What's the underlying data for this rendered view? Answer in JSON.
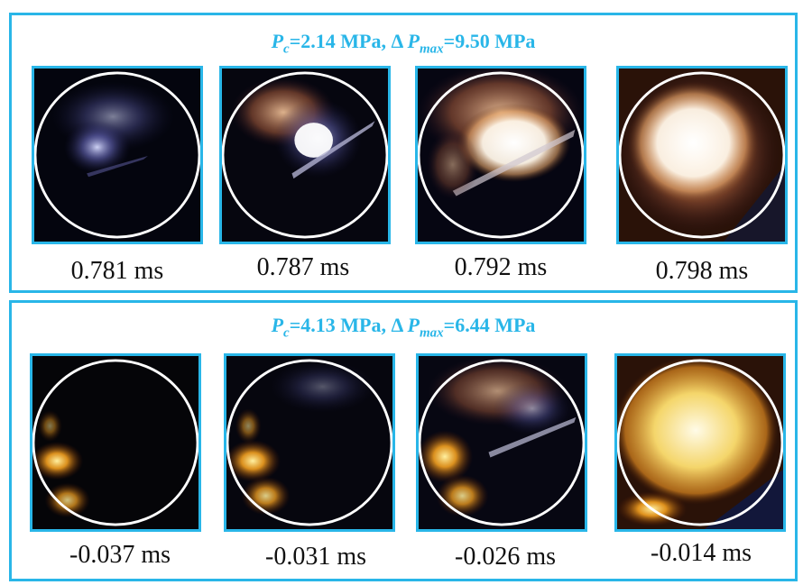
{
  "panels": [
    {
      "pc_symbol": "P",
      "pc_sub": "c",
      "pc_value": "=2.14 MPa, ",
      "dp_delta": "Δ",
      "dp_symbol": "P",
      "dp_sub": "max",
      "dp_value": "=9.50 MPa",
      "frames": [
        {
          "time": "0.781 ms"
        },
        {
          "time": "0.787 ms"
        },
        {
          "time": "0.792 ms"
        },
        {
          "time": "0.798 ms"
        }
      ]
    },
    {
      "pc_symbol": "P",
      "pc_sub": "c",
      "pc_value": "=4.13 MPa, ",
      "dp_delta": "Δ",
      "dp_symbol": "P",
      "dp_sub": "max",
      "dp_value": "=6.44 MPa",
      "frames": [
        {
          "time": "-0.037 ms"
        },
        {
          "time": "-0.031 ms"
        },
        {
          "time": "-0.026 ms"
        },
        {
          "time": "-0.014 ms"
        }
      ]
    }
  ],
  "colors": {
    "frame_border": "#29b6e8",
    "title_text": "#29b6e8",
    "time_text": "#111111"
  }
}
